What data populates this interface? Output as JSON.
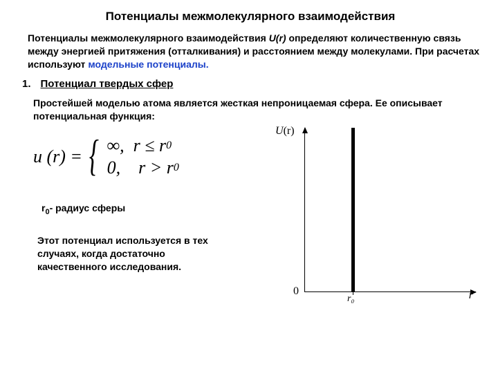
{
  "title": "Потенциалы межмолекулярного взаимодействия",
  "intro_p1": "Потенциалы межмолекулярного взаимодействия ",
  "intro_func": "U(r)",
  "intro_p2": " определяют количественную связь между энергией притяжения (отталкивания) и расстоянием между молекулами. При расчетах используют ",
  "intro_blue": "модельные потенциалы.",
  "section_num": "1.",
  "section_title": "Потенциал твердых сфер",
  "para2": "Простейшей моделью атома  является жесткая непроницаемая сфера. Ее описывает потенциальная функция:",
  "formula": {
    "lhs": "u (r) =",
    "case1": "∞,  r ≤ r",
    "case1_sub": "0",
    "case2": "0,    r > r",
    "case2_sub": "0"
  },
  "radius_sym": "r",
  "radius_sub": "0",
  "radius_text": "- радиус сферы",
  "bottom": "Этот потенциал используется в тех случаях, когда достаточно качественного исследования.",
  "chart": {
    "y_label_pre": "U",
    "y_label_arg": "(r)",
    "zero": "0",
    "r0": "r₀",
    "r": "r",
    "colors": {
      "axis": "#000000",
      "bar": "#000000",
      "bg": "#ffffff"
    }
  }
}
